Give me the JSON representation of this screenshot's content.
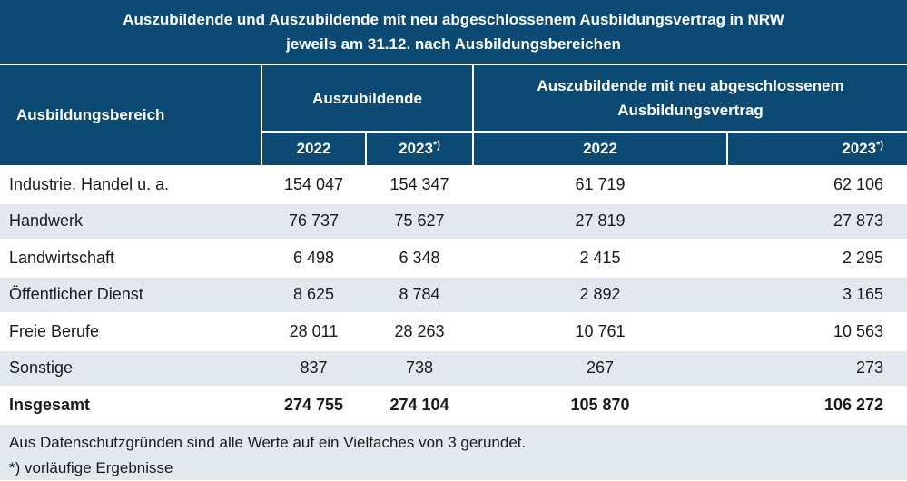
{
  "title_line1": "Auszubildende und Auszubildende mit neu abgeschlossenem Ausbildungsvertrag in NRW",
  "title_line2": "jeweils am 31.12. nach Ausbildungsbereichen",
  "header": {
    "area": "Ausbildungsbereich",
    "group1": "Auszubildende",
    "group2_line1": "Auszubildende mit neu abgeschlossenem",
    "group2_line2": "Ausbildungsvertrag",
    "years": [
      "2022",
      "2023",
      "2022",
      "2023"
    ],
    "footnote_mark": "*)"
  },
  "rows": [
    {
      "label": "Industrie, Handel u. a.",
      "values": [
        "154 047",
        "154 347",
        "61 719",
        "62 106"
      ]
    },
    {
      "label": "Handwerk",
      "values": [
        "76 737",
        "75 627",
        "27 819",
        "27 873"
      ]
    },
    {
      "label": "Landwirtschaft",
      "values": [
        "6 498",
        "6 348",
        "2 415",
        "2 295"
      ]
    },
    {
      "label": "Öffentlicher Dienst",
      "values": [
        "8 625",
        "8 784",
        "2 892",
        "3 165"
      ]
    },
    {
      "label": "Freie Berufe",
      "values": [
        "28 011",
        "28 263",
        "10 761",
        "10 563"
      ]
    },
    {
      "label": "Sonstige",
      "values": [
        "837",
        "738",
        "267",
        "273"
      ]
    }
  ],
  "total": {
    "label": "Insgesamt",
    "values": [
      "274 755",
      "274 104",
      "105 870",
      "106 272"
    ]
  },
  "notes": [
    "Aus Datenschutzgründen sind alle Werte auf ein Vielfaches von 3 gerundet.",
    "*) vorläufige Ergebnisse"
  ],
  "colors": {
    "header_bg": "#0d4a73",
    "stripe_bg": "#e3e8ef"
  }
}
